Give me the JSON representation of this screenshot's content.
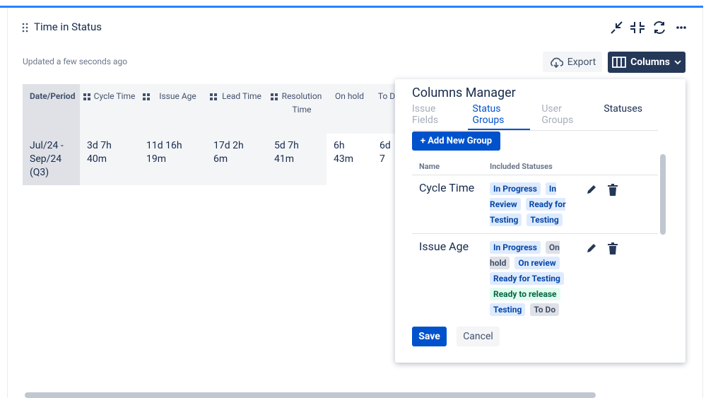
{
  "header": {
    "title": "Time in Status",
    "updated": "Updated a few seconds ago",
    "export": "Export",
    "columns": "Columns"
  },
  "table": {
    "headers": [
      "Date/Period",
      "Cycle Time",
      "Issue Age",
      "Lead Time",
      "Resolution Time",
      "On hold",
      "To D"
    ],
    "rows": [
      [
        "Jul/24 - Sep/24 (Q3)",
        "3d 7h 40m",
        "11d 16h 19m",
        "17d 2h 6m",
        "5d 7h 41m",
        "6h 43m",
        "6d 7"
      ]
    ]
  },
  "columns_manager": {
    "title": "Columns Manager",
    "tabs": [
      "Issue Fields",
      "Status Groups",
      "User Groups",
      "Statuses"
    ],
    "active_tab": 1,
    "add_button": "+ Add New Group",
    "list_headers": [
      "Name",
      "Included Statuses"
    ],
    "groups": [
      {
        "name": "Cycle Time",
        "statuses": [
          {
            "text": "In Progress",
            "color": "blue"
          },
          {
            "text": "In Review",
            "color": "blue"
          },
          {
            "text": "Ready for Testing",
            "color": "blue"
          },
          {
            "text": "Testing",
            "color": "blue"
          }
        ]
      },
      {
        "name": "Issue Age",
        "statuses": [
          {
            "text": "In Progress",
            "color": "blue"
          },
          {
            "text": "On hold",
            "color": "gray"
          },
          {
            "text": "On review",
            "color": "blue"
          },
          {
            "text": "Ready for Testing",
            "color": "blue"
          },
          {
            "text": "Ready to release",
            "color": "green"
          },
          {
            "text": "Testing",
            "color": "blue"
          },
          {
            "text": "To Do",
            "color": "gray"
          }
        ]
      }
    ],
    "save": "Save",
    "cancel": "Cancel"
  }
}
